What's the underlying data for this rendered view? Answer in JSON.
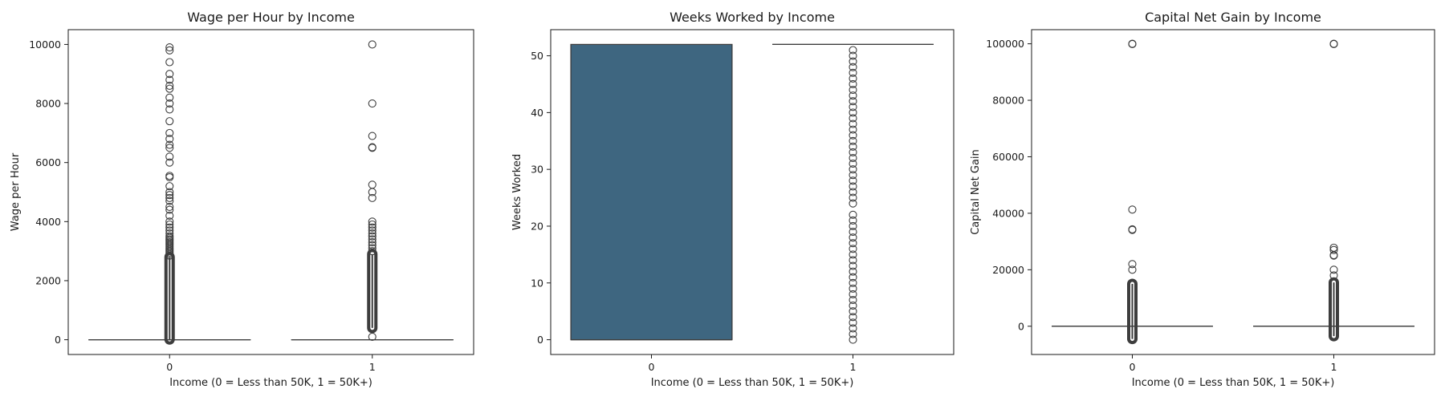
{
  "colors": {
    "box_fill": "#3e6680",
    "line": "#3d3d3d",
    "frame": "#1a1a1a",
    "background": "#ffffff"
  },
  "chart_data": [
    {
      "type": "box",
      "title": "Wage per Hour by Income",
      "xlabel": "Income (0 = Less than 50K, 1 = 50K+)",
      "ylabel": "Wage per Hour",
      "categories": [
        "0",
        "1"
      ],
      "ylim": [
        -500,
        10500
      ],
      "yticks": [
        0,
        2000,
        4000,
        6000,
        8000,
        10000
      ],
      "yticklabels": [
        "0",
        "2000",
        "4000",
        "6000",
        "8000",
        "10000"
      ],
      "boxes": [
        {
          "category": "0",
          "q1": 0,
          "median": 0,
          "q3": 0,
          "whisker_low": 0,
          "whisker_high": 0,
          "dense_outliers": [
            10,
            2800
          ],
          "outliers": [
            2850,
            2900,
            2950,
            3000,
            3050,
            3100,
            3150,
            3200,
            3250,
            3300,
            3350,
            3400,
            3450,
            3500,
            3600,
            3700,
            3800,
            3900,
            4000,
            4200,
            4400,
            4500,
            4700,
            4800,
            4900,
            5000,
            5200,
            5500,
            5550,
            6000,
            6200,
            6500,
            6600,
            6800,
            7000,
            7400,
            7800,
            8000,
            8200,
            8500,
            8600,
            8800,
            9000,
            9400,
            9800,
            9900
          ]
        },
        {
          "category": "1",
          "q1": 0,
          "median": 0,
          "q3": 0,
          "whisker_low": 0,
          "whisker_high": 0,
          "dense_outliers": [
            400,
            2900
          ],
          "outliers": [
            100,
            3000,
            3100,
            3200,
            3300,
            3400,
            3500,
            3600,
            3700,
            3800,
            3900,
            4000,
            4800,
            5000,
            5250,
            6500,
            6520,
            6900,
            8000,
            9999
          ]
        }
      ]
    },
    {
      "type": "box",
      "title": "Weeks Worked by Income",
      "xlabel": "Income (0 = Less than 50K, 1 = 50K+)",
      "ylabel": "Weeks Worked",
      "categories": [
        "0",
        "1"
      ],
      "ylim": [
        -2.6,
        54.6
      ],
      "yticks": [
        0,
        10,
        20,
        30,
        40,
        50
      ],
      "yticklabels": [
        "0",
        "10",
        "20",
        "30",
        "40",
        "50"
      ],
      "boxes": [
        {
          "category": "0",
          "q1": 0,
          "median": 0,
          "q3": 52,
          "whisker_low": 0,
          "whisker_high": 52,
          "dense_outliers": [],
          "outliers": []
        },
        {
          "category": "1",
          "q1": 52,
          "median": 52,
          "q3": 52,
          "whisker_low": 52,
          "whisker_high": 52,
          "dense_outliers": [],
          "outliers": [
            0,
            1,
            2,
            3,
            4,
            5,
            6,
            7,
            8,
            9,
            10,
            11,
            12,
            13,
            14,
            15,
            16,
            17,
            18,
            19,
            20,
            21,
            22,
            24,
            25,
            26,
            27,
            28,
            29,
            30,
            31,
            32,
            33,
            34,
            35,
            36,
            37,
            38,
            39,
            40,
            41,
            42,
            43,
            44,
            45,
            46,
            47,
            48,
            49,
            50,
            51
          ]
        }
      ]
    },
    {
      "type": "box",
      "title": "Capital Net Gain by Income",
      "xlabel": "Income (0 = Less than 50K, 1 = 50K+)",
      "ylabel": "Capital Net Gain",
      "categories": [
        "0",
        "1"
      ],
      "ylim": [
        -10000,
        105000
      ],
      "yticks": [
        0,
        20000,
        40000,
        60000,
        80000,
        100000
      ],
      "yticklabels": [
        "0",
        "20000",
        "40000",
        "60000",
        "80000",
        "100000"
      ],
      "boxes": [
        {
          "category": "0",
          "q1": 0,
          "median": 0,
          "q3": 0,
          "whisker_low": 0,
          "whisker_high": 0,
          "dense_outliers": [
            -4500,
            15000
          ],
          "outliers": [
            20000,
            22000,
            34100,
            34300,
            41300,
            99900,
            100000
          ]
        },
        {
          "category": "1",
          "q1": 0,
          "median": 0,
          "q3": 0,
          "whisker_low": 0,
          "whisker_high": 0,
          "dense_outliers": [
            -3500,
            15500
          ],
          "outliers": [
            18000,
            20000,
            25000,
            25200,
            27000,
            27800,
            99900,
            100000
          ]
        }
      ]
    }
  ]
}
